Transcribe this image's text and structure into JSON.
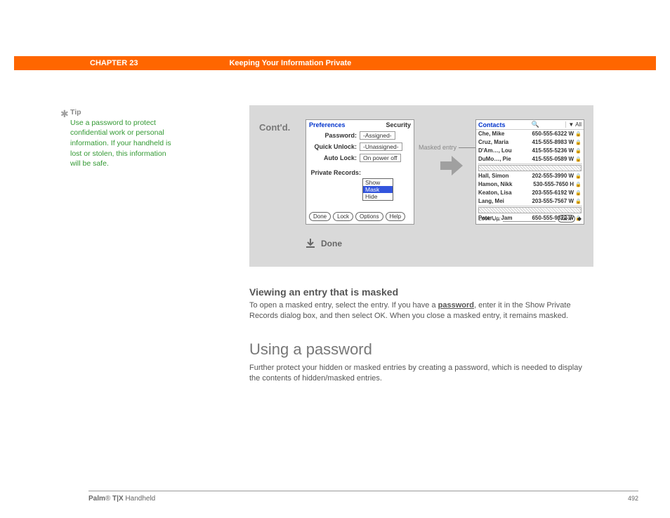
{
  "header": {
    "chapter": "CHAPTER 23",
    "title": "Keeping Your Information Private"
  },
  "tip": {
    "heading": "Tip",
    "body": "Use a password to protect confidential work or personal information. If your handheld is lost or stolen, this information will be safe."
  },
  "panel": {
    "contd": "Cont'd.",
    "done": "Done",
    "masked_entry_label": "Masked entry",
    "colors": {
      "panel_bg": "#d9d9d9",
      "accent": "#ff6600"
    }
  },
  "prefs": {
    "title_left": "Preferences",
    "title_right": "Security",
    "rows": [
      {
        "label": "Password:",
        "value": "-Assigned-"
      },
      {
        "label": "Quick Unlock:",
        "value": "-Unassigned-"
      },
      {
        "label": "Auto Lock:",
        "value": "On power off"
      }
    ],
    "private_label": "Private Records:",
    "private_options": [
      "Show",
      "Mask",
      "Hide"
    ],
    "private_selected_index": 1,
    "buttons": [
      "Done",
      "Lock",
      "Options",
      "Help"
    ]
  },
  "contacts": {
    "title": "Contacts",
    "category": "▼ All",
    "rows_top": [
      {
        "name": "Che, Mike",
        "phone": "650-555-6322 W"
      },
      {
        "name": "Cruz, Maria",
        "phone": "415-555-8983 W"
      },
      {
        "name": "D'Am…, Lou",
        "phone": "415-555-5236 W"
      },
      {
        "name": "DuMo…, Pie",
        "phone": "415-555-0589 W"
      }
    ],
    "rows_bottom": [
      {
        "name": "Hall, Simon",
        "phone": "202-555-3990 W"
      },
      {
        "name": "Hamon, Nikk",
        "phone": "530-555-7650 H"
      },
      {
        "name": "Keaton, Lisa",
        "phone": "203-555-6192 W"
      },
      {
        "name": "Lang, Mei",
        "phone": "203-555-7567 W"
      }
    ],
    "rows_last": [
      {
        "name": "Peter…, Jam",
        "phone": "650-555-9322 W"
      }
    ],
    "lookup_label": "Look Up:",
    "new_button": "New"
  },
  "section_viewing": {
    "heading": "Viewing an entry that is masked",
    "body_before": "To open a masked entry, select the entry. If you have a ",
    "link": "password",
    "body_after": ", enter it in the Show Private Records dialog box, and then select OK. When you close a masked entry, it remains masked."
  },
  "section_using": {
    "heading": "Using a password",
    "body": "Further protect your hidden or masked entries by creating a password, which is needed to display the contents of hidden/masked entries."
  },
  "footer": {
    "product_bold": "Palm",
    "reg": "®",
    "product_rest": " T|X",
    "product_tail": " Handheld",
    "page": "492"
  }
}
